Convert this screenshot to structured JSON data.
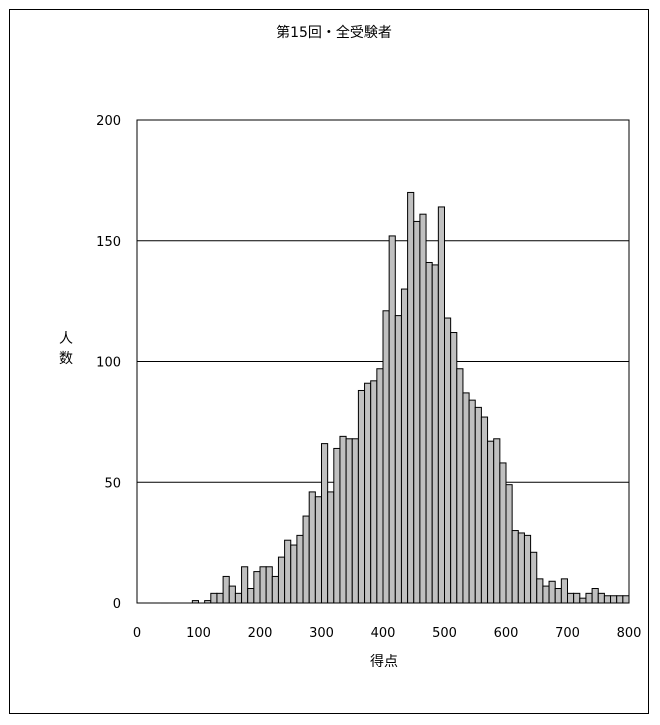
{
  "chart_data": {
    "type": "bar",
    "title": "第15回・全受験者",
    "xlabel": "得点",
    "ylabel": "人数",
    "ylim": [
      0,
      200
    ],
    "xlim": [
      0,
      800
    ],
    "yticks": [
      "0",
      "50",
      "100",
      "150",
      "200"
    ],
    "xticks": [
      "0",
      "100",
      "200",
      "300",
      "400",
      "500",
      "600",
      "700",
      "800"
    ],
    "grid": "horizontal",
    "bin_width": 10,
    "bin_starts": [
      40,
      90,
      100,
      110,
      120,
      130,
      140,
      150,
      160,
      170,
      180,
      190,
      200,
      210,
      220,
      230,
      240,
      250,
      260,
      270,
      280,
      290,
      300,
      310,
      320,
      330,
      340,
      350,
      360,
      370,
      380,
      390,
      400,
      410,
      420,
      430,
      440,
      450,
      460,
      470,
      480,
      490,
      500,
      510,
      520,
      530,
      540,
      550,
      560,
      570,
      580,
      590,
      600,
      610,
      620,
      630,
      640,
      650,
      660,
      670,
      680,
      690,
      700,
      710,
      720,
      730,
      740,
      750,
      760,
      770,
      780,
      790
    ],
    "values": [
      0,
      1,
      0,
      1,
      4,
      4,
      11,
      7,
      4,
      15,
      6,
      13,
      15,
      15,
      11,
      19,
      26,
      24,
      28,
      36,
      46,
      44,
      66,
      46,
      64,
      69,
      68,
      68,
      88,
      91,
      92,
      97,
      121,
      152,
      119,
      130,
      170,
      158,
      161,
      141,
      140,
      164,
      118,
      112,
      97,
      87,
      84,
      81,
      77,
      67,
      68,
      58,
      49,
      30,
      29,
      28,
      21,
      10,
      7,
      9,
      6,
      10,
      4,
      4,
      2,
      4,
      6,
      4,
      3,
      3,
      3,
      3
    ]
  }
}
